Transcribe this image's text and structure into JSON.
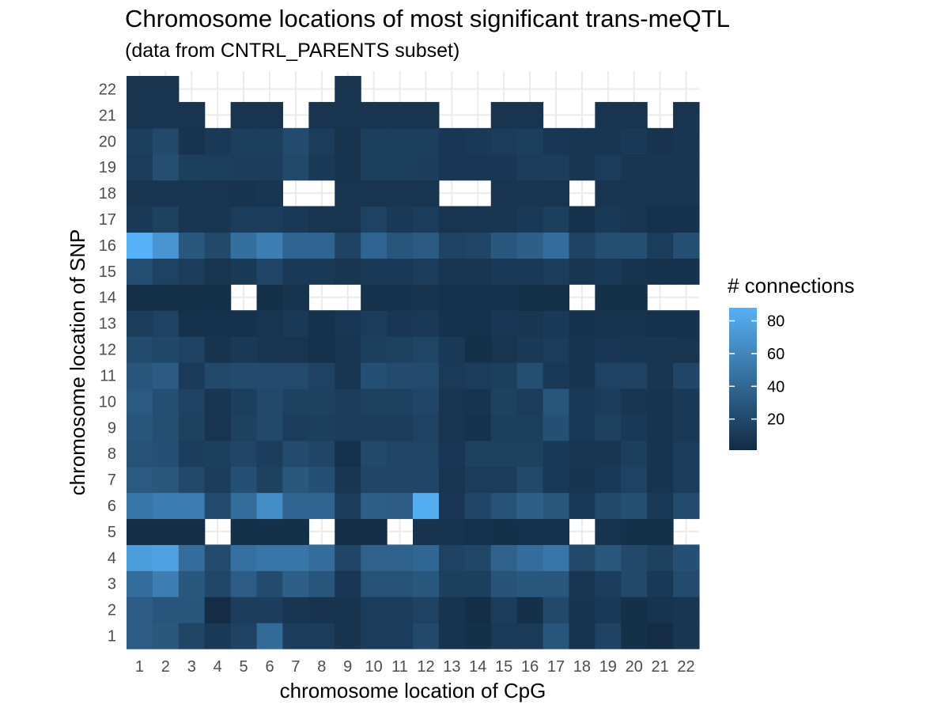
{
  "chart_data": {
    "type": "heatmap",
    "title": "Chromosome locations of most significant trans-meQTL",
    "subtitle": "(data from CNTRL_PARENTS subset)",
    "xlabel": "chromosome location of CpG",
    "ylabel": "chromosome location of SNP",
    "x_categories": [
      "1",
      "2",
      "3",
      "4",
      "5",
      "6",
      "7",
      "8",
      "9",
      "10",
      "11",
      "12",
      "13",
      "14",
      "15",
      "16",
      "17",
      "18",
      "19",
      "20",
      "21",
      "22"
    ],
    "y_categories": [
      "1",
      "2",
      "3",
      "4",
      "5",
      "6",
      "7",
      "8",
      "9",
      "10",
      "11",
      "12",
      "13",
      "14",
      "15",
      "16",
      "17",
      "18",
      "19",
      "20",
      "21",
      "22"
    ],
    "legend": {
      "title": "# connections",
      "breaks": [
        20,
        40,
        60,
        80
      ],
      "range": [
        1,
        88
      ],
      "low_color": "#132B43",
      "high_color": "#56B1F7",
      "placement": "right"
    },
    "grid": true,
    "values": [
      [
        33,
        30,
        17,
        10,
        16,
        42,
        12,
        12,
        6,
        12,
        12,
        20,
        6,
        4,
        11,
        11,
        28,
        6,
        16,
        4,
        2,
        8
      ],
      [
        33,
        28,
        28,
        2,
        13,
        13,
        8,
        6,
        6,
        12,
        12,
        16,
        6,
        3,
        12,
        4,
        20,
        6,
        10,
        4,
        6,
        8
      ],
      [
        44,
        55,
        30,
        19,
        33,
        22,
        35,
        28,
        9,
        26,
        26,
        30,
        14,
        14,
        27,
        30,
        29,
        8,
        13,
        20,
        10,
        22
      ],
      [
        75,
        78,
        44,
        22,
        46,
        50,
        50,
        44,
        18,
        36,
        36,
        40,
        16,
        19,
        36,
        44,
        50,
        20,
        30,
        20,
        15,
        25
      ],
      [
        3,
        3,
        3,
        null,
        4,
        4,
        4,
        null,
        3,
        3,
        null,
        6,
        6,
        5,
        4,
        5,
        5,
        null,
        6,
        4,
        4,
        null
      ],
      [
        50,
        54,
        54,
        22,
        44,
        65,
        38,
        38,
        12,
        35,
        33,
        85,
        9,
        18,
        26,
        35,
        30,
        10,
        20,
        24,
        10,
        22
      ],
      [
        31,
        30,
        20,
        12,
        25,
        15,
        30,
        25,
        8,
        18,
        18,
        18,
        7,
        12,
        12,
        20,
        10,
        6,
        10,
        16,
        6,
        12
      ],
      [
        26,
        25,
        13,
        14,
        18,
        13,
        22,
        18,
        5,
        20,
        17,
        17,
        9,
        15,
        15,
        15,
        10,
        8,
        8,
        14,
        6,
        12
      ],
      [
        28,
        24,
        15,
        7,
        15,
        20,
        12,
        14,
        12,
        12,
        12,
        16,
        7,
        5,
        14,
        14,
        25,
        10,
        15,
        10,
        6,
        10
      ],
      [
        31,
        24,
        16,
        8,
        14,
        20,
        15,
        15,
        12,
        15,
        15,
        18,
        7,
        6,
        15,
        12,
        28,
        10,
        12,
        8,
        6,
        10
      ],
      [
        28,
        32,
        11,
        20,
        22,
        22,
        21,
        16,
        8,
        25,
        22,
        21,
        11,
        12,
        14,
        24,
        10,
        6,
        16,
        16,
        8,
        18
      ],
      [
        22,
        19,
        16,
        6,
        10,
        8,
        7,
        5,
        8,
        14,
        15,
        17,
        10,
        4,
        7,
        10,
        12,
        6,
        9,
        8,
        8,
        7
      ],
      [
        12,
        16,
        5,
        5,
        5,
        7,
        10,
        5,
        9,
        12,
        9,
        10,
        5,
        5,
        9,
        8,
        10,
        5,
        6,
        6,
        5,
        5
      ],
      [
        4,
        4,
        4,
        4,
        null,
        4,
        6,
        null,
        null,
        5,
        5,
        6,
        5,
        5,
        5,
        4,
        4,
        null,
        4,
        4,
        null,
        null
      ],
      [
        24,
        16,
        12,
        7,
        10,
        18,
        10,
        10,
        7,
        10,
        10,
        12,
        7,
        8,
        10,
        10,
        12,
        8,
        10,
        6,
        5,
        5
      ],
      [
        88,
        70,
        30,
        20,
        45,
        55,
        38,
        38,
        16,
        38,
        28,
        32,
        16,
        18,
        30,
        35,
        44,
        16,
        24,
        24,
        12,
        24
      ],
      [
        10,
        15,
        8,
        8,
        12,
        12,
        10,
        7,
        7,
        16,
        10,
        12,
        7,
        8,
        8,
        10,
        14,
        5,
        10,
        8,
        5,
        5
      ],
      [
        7,
        8,
        8,
        7,
        6,
        8,
        null,
        null,
        7,
        7,
        7,
        7,
        null,
        null,
        7,
        7,
        7,
        null,
        7,
        7,
        7,
        7
      ],
      [
        12,
        24,
        14,
        14,
        13,
        13,
        20,
        10,
        6,
        14,
        14,
        13,
        9,
        9,
        9,
        12,
        13,
        8,
        12,
        8,
        8,
        8
      ],
      [
        14,
        20,
        6,
        10,
        14,
        14,
        22,
        12,
        6,
        14,
        14,
        14,
        9,
        10,
        12,
        14,
        9,
        8,
        8,
        10,
        6,
        8
      ],
      [
        7,
        7,
        7,
        null,
        7,
        7,
        null,
        7,
        7,
        7,
        7,
        7,
        null,
        null,
        7,
        7,
        null,
        null,
        7,
        7,
        null,
        7
      ],
      [
        7,
        7,
        null,
        null,
        null,
        null,
        null,
        null,
        7,
        null,
        null,
        null,
        null,
        null,
        null,
        null,
        null,
        null,
        null,
        null,
        null,
        null
      ]
    ]
  }
}
